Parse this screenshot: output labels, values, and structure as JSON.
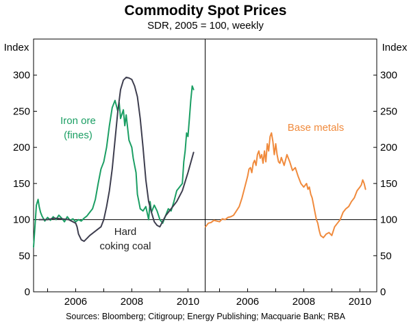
{
  "chart_data": {
    "type": "line",
    "title": "Commodity Spot Prices",
    "subtitle": "SDR, 2005 = 100, weekly",
    "source": "Sources: Bloomberg; Citigroup; Energy Publishing; Macquarie Bank; RBA",
    "y_unit_left": "Index",
    "y_unit_right": "Index",
    "ylim": [
      0,
      350
    ],
    "xlim": [
      2004.5,
      2010.6
    ],
    "yticks": [
      0,
      50,
      100,
      150,
      200,
      250,
      300
    ],
    "xticks": [
      2006,
      2008,
      2010
    ],
    "reference_line": 100,
    "panels": [
      {
        "name": "left",
        "series": [
          {
            "name": "Iron ore (fines)",
            "label_lines": [
              "Iron ore",
              "(fines)"
            ],
            "color": "#1a9e63",
            "x": [
              2004.5,
              2004.55,
              2004.6,
              2004.66,
              2004.7,
              2004.75,
              2004.8,
              2004.9,
              2005.0,
              2005.1,
              2005.2,
              2005.3,
              2005.4,
              2005.5,
              2005.6,
              2005.7,
              2005.8,
              2005.9,
              2006.0,
              2006.1,
              2006.2,
              2006.3,
              2006.4,
              2006.5,
              2006.6,
              2006.7,
              2006.8,
              2006.9,
              2007.0,
              2007.1,
              2007.2,
              2007.3,
              2007.4,
              2007.5,
              2007.55,
              2007.6,
              2007.7,
              2007.75,
              2007.8,
              2007.9,
              2008.0,
              2008.05,
              2008.1,
              2008.15,
              2008.2,
              2008.25,
              2008.3,
              2008.4,
              2008.5,
              2008.6,
              2008.65,
              2008.7,
              2008.8,
              2008.9,
              2009.0,
              2009.1,
              2009.2,
              2009.3,
              2009.4,
              2009.5,
              2009.6,
              2009.7,
              2009.8,
              2009.85,
              2009.9,
              2009.95,
              2010.0,
              2010.05,
              2010.1,
              2010.15,
              2010.2
            ],
            "values": [
              62,
              90,
              120,
              128,
              118,
              110,
              105,
              98,
              103,
              99,
              104,
              100,
              106,
              102,
              97,
              104,
              99,
              101,
              97,
              100,
              98,
              102,
              105,
              110,
              115,
              128,
              150,
              170,
              180,
              200,
              230,
              255,
              265,
              250,
              262,
              240,
              252,
              230,
              245,
              210,
              200,
              185,
              175,
              165,
              135,
              125,
              115,
              112,
              118,
              100,
              125,
              110,
              120,
              112,
              100,
              95,
              105,
              115,
              112,
              125,
              140,
              145,
              150,
              180,
              195,
              220,
              215,
              240,
              265,
              285,
              280
            ]
          },
          {
            "name": "Hard coking coal",
            "label_lines": [
              "Hard",
              "coking coal"
            ],
            "color": "#3d3d4e",
            "x": [
              2004.7,
              2005.0,
              2005.25,
              2005.5,
              2005.75,
              2006.0,
              2006.05,
              2006.1,
              2006.2,
              2006.3,
              2006.5,
              2006.7,
              2006.9,
              2007.0,
              2007.1,
              2007.2,
              2007.3,
              2007.4,
              2007.5,
              2007.6,
              2007.7,
              2007.8,
              2007.9,
              2008.0,
              2008.1,
              2008.2,
              2008.3,
              2008.4,
              2008.5,
              2008.6,
              2008.7,
              2008.8,
              2008.9,
              2009.0,
              2009.2,
              2009.4,
              2009.6,
              2009.8,
              2010.0,
              2010.2
            ],
            "values": [
              100,
              100,
              102,
              101,
              100,
              95,
              90,
              80,
              72,
              70,
              78,
              84,
              90,
              100,
              118,
              140,
              170,
              210,
              250,
              280,
              293,
              297,
              296,
              294,
              285,
              270,
              240,
              200,
              155,
              125,
              110,
              97,
              92,
              90,
              105,
              115,
              125,
              140,
              165,
              193
            ]
          }
        ],
        "annotation_lines": [
          "Hard",
          "coking coal"
        ]
      },
      {
        "name": "right",
        "series": [
          {
            "name": "Base metals",
            "label_lines": [
              "Base metals"
            ],
            "color": "#f08a3c",
            "x": [
              2004.5,
              2004.6,
              2004.7,
              2004.8,
              2004.9,
              2005.0,
              2005.1,
              2005.2,
              2005.3,
              2005.4,
              2005.5,
              2005.6,
              2005.7,
              2005.8,
              2005.9,
              2006.0,
              2006.05,
              2006.1,
              2006.15,
              2006.2,
              2006.25,
              2006.3,
              2006.35,
              2006.4,
              2006.45,
              2006.5,
              2006.55,
              2006.6,
              2006.65,
              2006.7,
              2006.75,
              2006.8,
              2006.85,
              2006.9,
              2006.95,
              2007.0,
              2007.05,
              2007.1,
              2007.15,
              2007.2,
              2007.3,
              2007.4,
              2007.5,
              2007.6,
              2007.7,
              2007.8,
              2007.9,
              2008.0,
              2008.1,
              2008.15,
              2008.2,
              2008.25,
              2008.3,
              2008.35,
              2008.4,
              2008.45,
              2008.5,
              2008.55,
              2008.6,
              2008.7,
              2008.8,
              2008.9,
              2009.0,
              2009.1,
              2009.2,
              2009.3,
              2009.4,
              2009.5,
              2009.6,
              2009.7,
              2009.8,
              2009.9,
              2010.0,
              2010.05,
              2010.1,
              2010.15,
              2010.2
            ],
            "values": [
              90,
              95,
              96,
              99,
              98,
              97,
              101,
              100,
              103,
              104,
              106,
              112,
              118,
              130,
              145,
              160,
              170,
              172,
              165,
              178,
              182,
              175,
              190,
              195,
              185,
              190,
              178,
              195,
              180,
              205,
              195,
              215,
              220,
              208,
              190,
              205,
              190,
              180,
              178,
              186,
              175,
              190,
              180,
              168,
              172,
              160,
              150,
              145,
              150,
              142,
              145,
              135,
              130,
              120,
              110,
              100,
              95,
              85,
              78,
              75,
              80,
              82,
              78,
              90,
              95,
              100,
              110,
              115,
              118,
              125,
              130,
              140,
              145,
              148,
              155,
              150,
              142
            ]
          }
        ]
      }
    ]
  }
}
